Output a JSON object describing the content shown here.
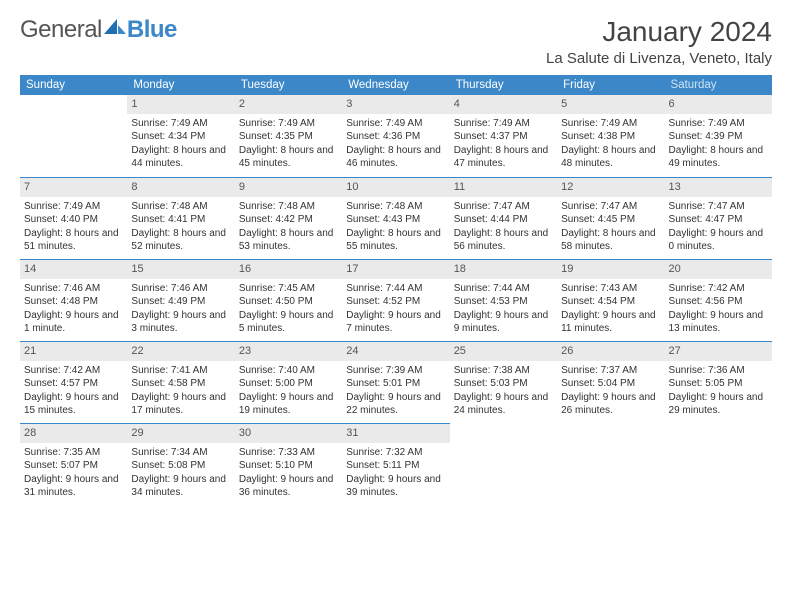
{
  "logo": {
    "word1": "General",
    "word2": "Blue"
  },
  "title": {
    "month": "January 2024",
    "location": "La Salute di Livenza, Veneto, Italy"
  },
  "colors": {
    "header_bg": "#3b87c8",
    "header_text": "#ffffff",
    "daynum_bg": "#eaeaea",
    "week_divider": "#3b87c8",
    "body_text": "#333333",
    "page_bg": "#ffffff"
  },
  "weekdays": [
    "Sunday",
    "Monday",
    "Tuesday",
    "Wednesday",
    "Thursday",
    "Friday",
    "Saturday"
  ],
  "weeks": [
    [
      null,
      {
        "n": "1",
        "r": "7:49 AM",
        "s": "4:34 PM",
        "d": "8 hours and 44 minutes."
      },
      {
        "n": "2",
        "r": "7:49 AM",
        "s": "4:35 PM",
        "d": "8 hours and 45 minutes."
      },
      {
        "n": "3",
        "r": "7:49 AM",
        "s": "4:36 PM",
        "d": "8 hours and 46 minutes."
      },
      {
        "n": "4",
        "r": "7:49 AM",
        "s": "4:37 PM",
        "d": "8 hours and 47 minutes."
      },
      {
        "n": "5",
        "r": "7:49 AM",
        "s": "4:38 PM",
        "d": "8 hours and 48 minutes."
      },
      {
        "n": "6",
        "r": "7:49 AM",
        "s": "4:39 PM",
        "d": "8 hours and 49 minutes."
      }
    ],
    [
      {
        "n": "7",
        "r": "7:49 AM",
        "s": "4:40 PM",
        "d": "8 hours and 51 minutes."
      },
      {
        "n": "8",
        "r": "7:48 AM",
        "s": "4:41 PM",
        "d": "8 hours and 52 minutes."
      },
      {
        "n": "9",
        "r": "7:48 AM",
        "s": "4:42 PM",
        "d": "8 hours and 53 minutes."
      },
      {
        "n": "10",
        "r": "7:48 AM",
        "s": "4:43 PM",
        "d": "8 hours and 55 minutes."
      },
      {
        "n": "11",
        "r": "7:47 AM",
        "s": "4:44 PM",
        "d": "8 hours and 56 minutes."
      },
      {
        "n": "12",
        "r": "7:47 AM",
        "s": "4:45 PM",
        "d": "8 hours and 58 minutes."
      },
      {
        "n": "13",
        "r": "7:47 AM",
        "s": "4:47 PM",
        "d": "9 hours and 0 minutes."
      }
    ],
    [
      {
        "n": "14",
        "r": "7:46 AM",
        "s": "4:48 PM",
        "d": "9 hours and 1 minute."
      },
      {
        "n": "15",
        "r": "7:46 AM",
        "s": "4:49 PM",
        "d": "9 hours and 3 minutes."
      },
      {
        "n": "16",
        "r": "7:45 AM",
        "s": "4:50 PM",
        "d": "9 hours and 5 minutes."
      },
      {
        "n": "17",
        "r": "7:44 AM",
        "s": "4:52 PM",
        "d": "9 hours and 7 minutes."
      },
      {
        "n": "18",
        "r": "7:44 AM",
        "s": "4:53 PM",
        "d": "9 hours and 9 minutes."
      },
      {
        "n": "19",
        "r": "7:43 AM",
        "s": "4:54 PM",
        "d": "9 hours and 11 minutes."
      },
      {
        "n": "20",
        "r": "7:42 AM",
        "s": "4:56 PM",
        "d": "9 hours and 13 minutes."
      }
    ],
    [
      {
        "n": "21",
        "r": "7:42 AM",
        "s": "4:57 PM",
        "d": "9 hours and 15 minutes."
      },
      {
        "n": "22",
        "r": "7:41 AM",
        "s": "4:58 PM",
        "d": "9 hours and 17 minutes."
      },
      {
        "n": "23",
        "r": "7:40 AM",
        "s": "5:00 PM",
        "d": "9 hours and 19 minutes."
      },
      {
        "n": "24",
        "r": "7:39 AM",
        "s": "5:01 PM",
        "d": "9 hours and 22 minutes."
      },
      {
        "n": "25",
        "r": "7:38 AM",
        "s": "5:03 PM",
        "d": "9 hours and 24 minutes."
      },
      {
        "n": "26",
        "r": "7:37 AM",
        "s": "5:04 PM",
        "d": "9 hours and 26 minutes."
      },
      {
        "n": "27",
        "r": "7:36 AM",
        "s": "5:05 PM",
        "d": "9 hours and 29 minutes."
      }
    ],
    [
      {
        "n": "28",
        "r": "7:35 AM",
        "s": "5:07 PM",
        "d": "9 hours and 31 minutes."
      },
      {
        "n": "29",
        "r": "7:34 AM",
        "s": "5:08 PM",
        "d": "9 hours and 34 minutes."
      },
      {
        "n": "30",
        "r": "7:33 AM",
        "s": "5:10 PM",
        "d": "9 hours and 36 minutes."
      },
      {
        "n": "31",
        "r": "7:32 AM",
        "s": "5:11 PM",
        "d": "9 hours and 39 minutes."
      },
      null,
      null,
      null
    ]
  ],
  "labels": {
    "sunrise": "Sunrise: ",
    "sunset": "Sunset: ",
    "daylight": "Daylight: "
  }
}
